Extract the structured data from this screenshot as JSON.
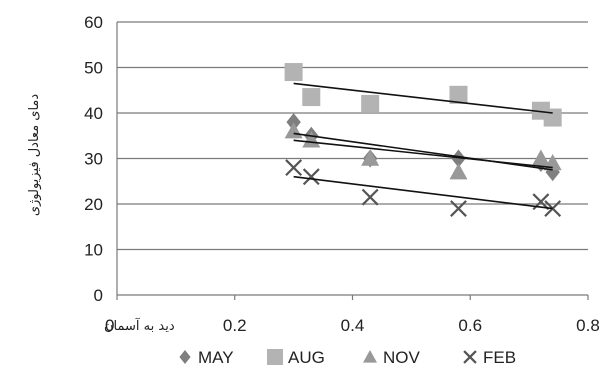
{
  "chart_data": {
    "type": "scatter",
    "ylabel": "دمای معادل فیزیولوژی",
    "xlabel": "دید به آسمان",
    "xlim": [
      0,
      0.8
    ],
    "ylim": [
      0,
      60
    ],
    "x_ticks": [
      "0",
      "0.2",
      "0.4",
      "0.6",
      "0.8"
    ],
    "y_ticks": [
      "0",
      "10",
      "20",
      "30",
      "40",
      "50",
      "60"
    ],
    "grid": "horizontal",
    "legend_position": "bottom",
    "trendlines": true,
    "series": [
      {
        "name": "MAY",
        "marker": "diamond",
        "color": "#7f7f7f",
        "points": [
          [
            0.3,
            38
          ],
          [
            0.33,
            35
          ],
          [
            0.43,
            30
          ],
          [
            0.58,
            30
          ],
          [
            0.72,
            29
          ],
          [
            0.74,
            27
          ]
        ],
        "trend": [
          [
            0.3,
            35.5
          ],
          [
            0.74,
            27.5
          ]
        ]
      },
      {
        "name": "AUG",
        "marker": "square",
        "color": "#b3b3b3",
        "points": [
          [
            0.3,
            49
          ],
          [
            0.33,
            43.5
          ],
          [
            0.43,
            42
          ],
          [
            0.58,
            44
          ],
          [
            0.72,
            40.5
          ],
          [
            0.74,
            39
          ]
        ],
        "trend": [
          [
            0.3,
            46.5
          ],
          [
            0.74,
            40
          ]
        ]
      },
      {
        "name": "NOV",
        "marker": "triangle",
        "color": "#999999",
        "points": [
          [
            0.3,
            36
          ],
          [
            0.33,
            34
          ],
          [
            0.43,
            30
          ],
          [
            0.58,
            27
          ],
          [
            0.72,
            30
          ],
          [
            0.74,
            29
          ]
        ],
        "trend": [
          [
            0.3,
            34
          ],
          [
            0.74,
            28
          ]
        ]
      },
      {
        "name": "FEB",
        "marker": "x",
        "color": "#555555",
        "points": [
          [
            0.3,
            28
          ],
          [
            0.33,
            26
          ],
          [
            0.43,
            21.5
          ],
          [
            0.58,
            19
          ],
          [
            0.72,
            20.5
          ],
          [
            0.74,
            19
          ]
        ],
        "trend": [
          [
            0.3,
            26
          ],
          [
            0.74,
            19
          ]
        ]
      }
    ]
  }
}
